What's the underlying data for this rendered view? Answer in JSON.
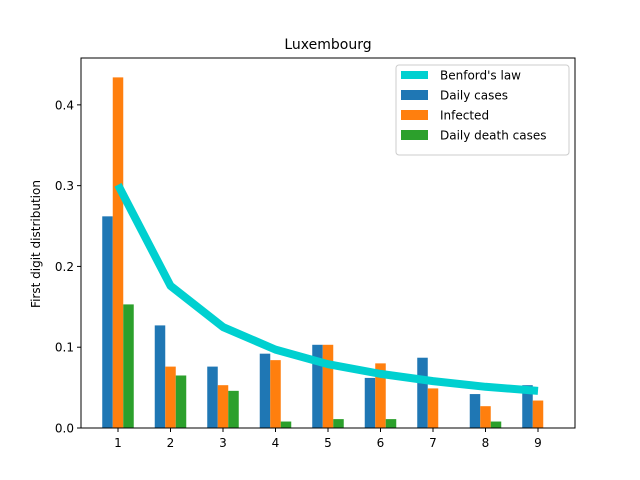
{
  "chart_data": {
    "type": "bar",
    "title": "Luxembourg",
    "xlabel": "",
    "ylabel": "First digit distribution",
    "categories": [
      "1",
      "2",
      "3",
      "4",
      "5",
      "6",
      "7",
      "8",
      "9"
    ],
    "yticks": [
      "0.0",
      "0.1",
      "0.2",
      "0.3",
      "0.4"
    ],
    "ylim": [
      0,
      0.458
    ],
    "grid": false,
    "legend_position": "top-right",
    "series": [
      {
        "name": "Daily cases",
        "kind": "bar",
        "color": "#1f77b4",
        "values": [
          0.262,
          0.127,
          0.076,
          0.092,
          0.103,
          0.062,
          0.087,
          0.042,
          0.053
        ]
      },
      {
        "name": "Infected",
        "kind": "bar",
        "color": "#ff7f0e",
        "values": [
          0.434,
          0.076,
          0.053,
          0.084,
          0.103,
          0.08,
          0.049,
          0.027,
          0.034
        ]
      },
      {
        "name": "Daily death cases",
        "kind": "bar",
        "color": "#2ca02c",
        "values": [
          0.153,
          0.065,
          0.046,
          0.008,
          0.011,
          0.011,
          0.0,
          0.008,
          0.0
        ]
      },
      {
        "name": "Benford's law",
        "kind": "line",
        "color": "#00d0d0",
        "values": [
          0.301,
          0.176,
          0.125,
          0.097,
          0.079,
          0.067,
          0.058,
          0.051,
          0.046
        ]
      }
    ]
  }
}
